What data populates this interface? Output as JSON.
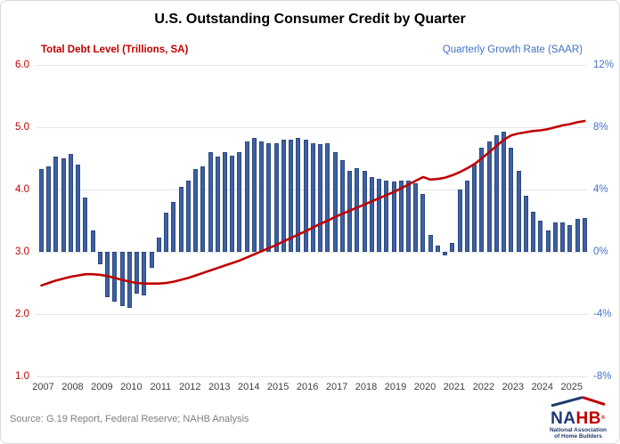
{
  "title": "U.S. Outstanding Consumer Credit by Quarter",
  "left_axis": {
    "header": "Total Debt Level (Trillions, SA)",
    "ticks": [
      "6.0",
      "5.0",
      "4.0",
      "3.0",
      "2.0",
      "1.0"
    ],
    "color": "#c00000"
  },
  "right_axis": {
    "header": "Quarterly Growth Rate (SAAR)",
    "ticks": [
      "12%",
      "8%",
      "4%",
      "0%",
      "-4%",
      "-8%"
    ],
    "color": "#4472c4"
  },
  "x_axis": {
    "years": [
      "2007",
      "2008",
      "2009",
      "2010",
      "2011",
      "2012",
      "2013",
      "2014",
      "2015",
      "2016",
      "2017",
      "2018",
      "2019",
      "2020",
      "2021",
      "2022",
      "2023",
      "2024",
      "2025"
    ]
  },
  "source": "Source: G.19 Report, Federal Reserve; NAHB Analysis",
  "logo": {
    "na": "NA",
    "hb": "HB",
    "reg": "®",
    "line1": "National Association",
    "line2": "of Home Builders"
  },
  "colors": {
    "bar": "#3e60a3",
    "line": "#c00000",
    "grid": "#e4e4e4"
  },
  "chart_data": {
    "type": "bar",
    "subtype": "combo-bar-line-dual-axis",
    "title": "U.S. Outstanding Consumer Credit by Quarter",
    "frequency": "quarterly",
    "start_quarter": "2007Q1",
    "end_quarter": "2025Q3",
    "years": [
      2007,
      2008,
      2009,
      2010,
      2011,
      2012,
      2013,
      2014,
      2015,
      2016,
      2017,
      2018,
      2019,
      2020,
      2021,
      2022,
      2023,
      2024,
      2025
    ],
    "left_axis_label": "Total Debt Level (Trillions, SA)",
    "right_axis_label": "Quarterly Growth Rate (SAAR)",
    "left_axis_range": [
      1.0,
      6.0
    ],
    "right_axis_range": [
      -8,
      12
    ],
    "grid": true,
    "bar_series": {
      "name": "Quarterly Growth Rate (SAAR, %)",
      "axis": "right",
      "values": [
        5.3,
        5.5,
        6.1,
        6.0,
        6.3,
        5.6,
        3.5,
        1.4,
        -0.8,
        -2.9,
        -3.2,
        -3.5,
        -3.6,
        -2.7,
        -2.8,
        -1.0,
        0.9,
        2.5,
        3.2,
        4.2,
        4.6,
        5.3,
        5.5,
        6.4,
        6.1,
        6.4,
        6.2,
        6.4,
        7.1,
        7.3,
        7.1,
        7.0,
        7.0,
        7.2,
        7.2,
        7.3,
        7.2,
        7.0,
        6.9,
        7.0,
        6.4,
        5.9,
        5.2,
        5.4,
        5.2,
        4.8,
        4.7,
        4.6,
        4.5,
        4.6,
        4.6,
        4.4,
        3.7,
        1.1,
        0.4,
        -0.2,
        0.6,
        4.0,
        4.6,
        5.6,
        6.7,
        7.1,
        7.5,
        7.7,
        6.7,
        5.2,
        3.6,
        2.6,
        2.0,
        1.4,
        1.9,
        1.9,
        1.7,
        2.1,
        2.2
      ]
    },
    "line_series": {
      "name": "Total Debt Level (Trillions, SA)",
      "axis": "left",
      "values": [
        2.46,
        2.5,
        2.54,
        2.57,
        2.6,
        2.62,
        2.64,
        2.64,
        2.63,
        2.61,
        2.58,
        2.55,
        2.52,
        2.5,
        2.49,
        2.49,
        2.49,
        2.5,
        2.52,
        2.55,
        2.58,
        2.62,
        2.66,
        2.7,
        2.74,
        2.78,
        2.82,
        2.86,
        2.91,
        2.96,
        3.01,
        3.06,
        3.11,
        3.17,
        3.22,
        3.28,
        3.33,
        3.39,
        3.45,
        3.5,
        3.56,
        3.61,
        3.66,
        3.71,
        3.76,
        3.81,
        3.86,
        3.91,
        3.96,
        4.02,
        4.08,
        4.14,
        4.2,
        4.16,
        4.17,
        4.19,
        4.23,
        4.28,
        4.34,
        4.41,
        4.5,
        4.6,
        4.7,
        4.8,
        4.87,
        4.9,
        4.92,
        4.94,
        4.95,
        4.97,
        5.0,
        5.03,
        5.05,
        5.08,
        5.1
      ]
    }
  }
}
